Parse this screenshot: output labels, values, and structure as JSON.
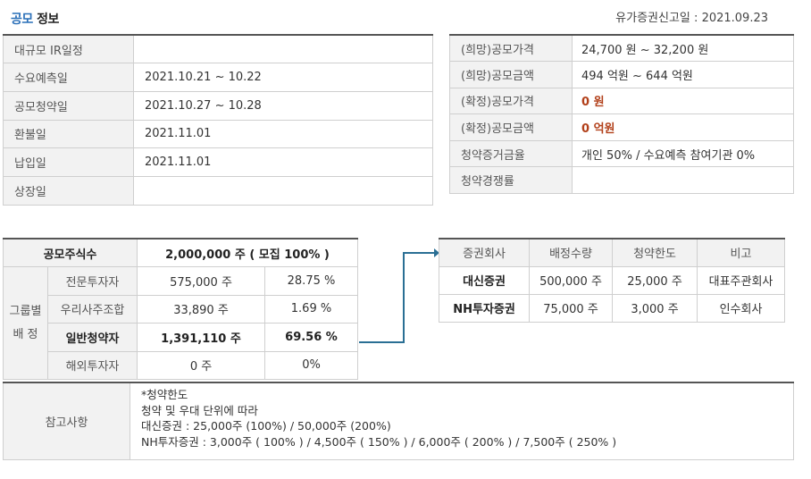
{
  "header": {
    "title_accent": "공모",
    "title_rest": " 정보",
    "filing_label": "유가증권신고일",
    "filing_sep": " : ",
    "filing_date": "2021.09.23"
  },
  "schedule": [
    {
      "label": "대규모 IR일정",
      "value": ""
    },
    {
      "label": "수요예측일",
      "value": "2021.10.21 ~ 10.22"
    },
    {
      "label": "공모청약일",
      "value": "2021.10.27 ~ 10.28"
    },
    {
      "label": "환불일",
      "value": "2021.11.01"
    },
    {
      "label": "납입일",
      "value": "2021.11.01"
    },
    {
      "label": "상장일",
      "value": ""
    }
  ],
  "price": [
    {
      "label": "(희망)공모가격",
      "value": "24,700 원 ~ 32,200 원"
    },
    {
      "label": "(희망)공모금액",
      "value": "494 억원  ~ 644 억원"
    },
    {
      "label": "(확정)공모가격",
      "value": "0 원"
    },
    {
      "label": "(확정)공모금액",
      "value": "0 억원"
    },
    {
      "label": "청약증거금율",
      "value": "개인 50% / 수요예측 참여기관 0%"
    },
    {
      "label": "청약경쟁률",
      "value": ""
    }
  ],
  "offer": {
    "total_label": "공모주식수",
    "total_value": "2,000,000 주 ( 모집 100% )",
    "group_label_1": "그룹별",
    "group_label_2": "배 정",
    "rows": [
      {
        "name": "전문투자자",
        "shares": "575,000 주",
        "pct": "28.75 %"
      },
      {
        "name": "우리사주조합",
        "shares": "33,890 주",
        "pct": "1.69 %"
      },
      {
        "name": "일반청약자",
        "shares": "1,391,110 주",
        "pct": "69.56 %"
      },
      {
        "name": "해외투자자",
        "shares": "0 주",
        "pct": "0%"
      }
    ]
  },
  "underwriters": {
    "headers": [
      "증권회사",
      "배정수량",
      "청약한도",
      "비고"
    ],
    "rows": [
      {
        "firm": "대신증권",
        "allot": "500,000 주",
        "limit": "25,000 주",
        "note": "대표주관회사"
      },
      {
        "firm": "NH투자증권",
        "allot": "75,000 주",
        "limit": "3,000 주",
        "note": "인수회사"
      }
    ]
  },
  "note": {
    "label": "참고사항",
    "lines": [
      "*청약한도",
      "청약 및 우대 단위에 따라",
      "대신증권 : 25,000주 (100%) / 50,000주 (200%)",
      "NH투자증권 : 3,000주 ( 100% ) / 4,500주 ( 150% ) / 6,000주 ( 200% ) / 7,500주 ( 250% )"
    ]
  },
  "colors": {
    "accent": "#2a6fb8",
    "confirmed_red": "#b2401a",
    "arrow": "#2a6f94"
  }
}
